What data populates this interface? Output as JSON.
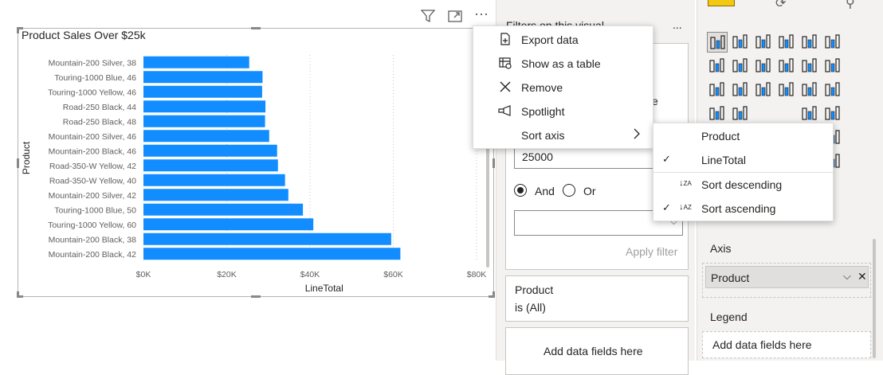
{
  "visual": {
    "title": "Product Sales Over $25k",
    "header_icons": [
      "filter-icon",
      "focus-mode-icon",
      "more-options-icon"
    ]
  },
  "colors": {
    "bar": "#118dff",
    "accent": "#f2c811",
    "pane_bg": "#f3f2f1"
  },
  "chart_data": {
    "type": "bar",
    "orientation": "horizontal",
    "title": "Product Sales Over $25k",
    "xlabel": "LineTotal",
    "ylabel": "Product",
    "categories": [
      "Mountain-200 Silver, 38",
      "Touring-1000 Blue, 46",
      "Touring-1000 Yellow, 46",
      "Road-250 Black, 44",
      "Road-250 Black, 48",
      "Mountain-200 Silver, 46",
      "Mountain-200 Black, 46",
      "Road-350-W Yellow, 42",
      "Road-350-W Yellow, 40",
      "Mountain-200 Silver, 42",
      "Touring-1000 Blue, 50",
      "Touring-1000 Yellow, 60",
      "Mountain-200 Black, 38",
      "Mountain-200 Black, 42"
    ],
    "values": [
      25400,
      28600,
      28500,
      29300,
      29200,
      30200,
      32100,
      32300,
      34000,
      34800,
      38300,
      40800,
      59500,
      61700
    ],
    "xticks": [
      0,
      20000,
      40000,
      60000,
      80000
    ],
    "xtick_labels": [
      "$0K",
      "$20K",
      "$40K",
      "$60K",
      "$80K"
    ],
    "xlim": [
      0,
      80000
    ],
    "grid": "vertical-dotted"
  },
  "filters_pane": {
    "title": "Filters on this visual",
    "more_label": "...",
    "partial_label": "e",
    "value_input": "25000",
    "and_label": "And",
    "or_label": "Or",
    "apply_label": "Apply filter",
    "product_card": {
      "field": "Product",
      "state": "is (All)"
    },
    "add_fields": "Add data fields here"
  },
  "viz_pane": {
    "axis_label": "Axis",
    "axis_field": "Product",
    "legend_label": "Legend",
    "legend_placeholder": "Add data fields here"
  },
  "context_menu": {
    "items": [
      {
        "label": "Export data",
        "icon": "export-data-icon"
      },
      {
        "label": "Show as a table",
        "icon": "show-table-icon"
      },
      {
        "label": "Remove",
        "icon": "close-icon"
      },
      {
        "label": "Spotlight",
        "icon": "spotlight-icon"
      },
      {
        "label": "Sort axis",
        "icon": "chevron-right-icon"
      }
    ]
  },
  "sort_submenu": {
    "items": [
      {
        "label": "Product",
        "checked": false
      },
      {
        "label": "LineTotal",
        "checked": true
      },
      {
        "label": "Sort descending",
        "checked": false,
        "icon": "sort-descending-icon"
      },
      {
        "label": "Sort ascending",
        "checked": true,
        "icon": "sort-ascending-icon"
      }
    ]
  }
}
